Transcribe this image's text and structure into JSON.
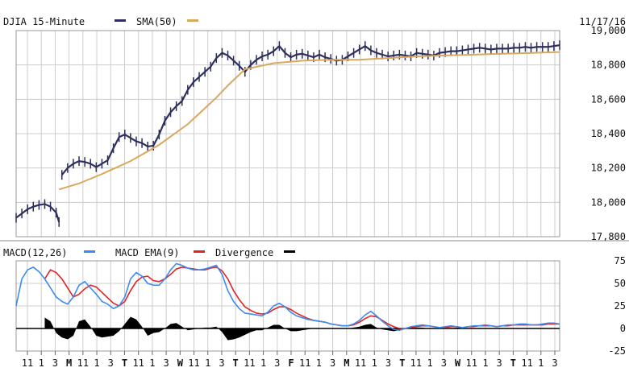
{
  "header": {
    "title": "DJIA 15-Minute",
    "price_legend": "SMA(50)",
    "date": "11/17/16"
  },
  "macd_header": {
    "macd_label": "MACD(12,26)",
    "ema_label": "MACD EMA(9)",
    "div_label": "Divergence"
  },
  "colors": {
    "price": "#2e2f5e",
    "sma": "#d9a85c",
    "macd": "#3b8cf0",
    "ema": "#e02424",
    "divergence": "#000000",
    "grid": "#cccccc"
  },
  "chart_data": [
    {
      "type": "line",
      "title": "DJIA 15-Minute",
      "series": [
        {
          "name": "DJIA 15-Minute",
          "x": [
            0,
            2,
            4,
            6,
            8,
            10,
            12,
            14,
            15,
            16,
            18,
            20,
            22,
            24,
            26,
            28,
            30,
            32,
            34,
            36,
            38,
            40,
            42,
            44,
            46,
            48,
            50,
            52,
            54,
            56,
            58,
            60,
            62,
            64,
            66,
            68,
            70,
            72,
            74,
            76,
            78,
            80,
            82,
            84,
            86,
            88,
            90,
            92,
            94,
            96,
            98,
            100,
            102,
            104,
            106,
            108,
            110,
            112,
            114,
            116,
            118,
            120,
            122,
            124,
            126,
            128,
            130,
            132,
            134,
            136,
            138,
            140,
            142,
            144,
            146,
            148,
            150,
            152,
            154,
            156,
            158,
            160,
            162,
            164,
            166,
            168,
            170,
            172,
            174,
            176,
            178,
            180,
            182,
            184,
            186,
            188,
            190
          ],
          "values": [
            17910,
            17935,
            17960,
            17975,
            17985,
            17990,
            17975,
            17940,
            17885,
            18160,
            18200,
            18225,
            18240,
            18235,
            18225,
            18205,
            18225,
            18245,
            18315,
            18380,
            18395,
            18375,
            18355,
            18345,
            18325,
            18330,
            18395,
            18475,
            18525,
            18560,
            18590,
            18655,
            18700,
            18730,
            18760,
            18790,
            18840,
            18870,
            18855,
            18825,
            18795,
            18760,
            18800,
            18830,
            18850,
            18860,
            18880,
            18910,
            18870,
            18845,
            18860,
            18865,
            18855,
            18845,
            18860,
            18845,
            18835,
            18825,
            18830,
            18850,
            18870,
            18890,
            18910,
            18885,
            18870,
            18860,
            18850,
            18855,
            18860,
            18855,
            18850,
            18870,
            18865,
            18860,
            18855,
            18870,
            18875,
            18880,
            18880,
            18885,
            18890,
            18895,
            18900,
            18895,
            18890,
            18895,
            18895,
            18895,
            18900,
            18900,
            18905,
            18900,
            18905,
            18905,
            18905,
            18910,
            18915
          ]
        },
        {
          "name": "SMA(50)",
          "x": [
            15,
            22,
            30,
            40,
            50,
            60,
            70,
            74,
            80,
            90,
            100,
            110,
            120,
            130,
            140,
            150,
            160,
            170,
            180,
            190
          ],
          "values": [
            18075,
            18110,
            18165,
            18240,
            18335,
            18455,
            18610,
            18680,
            18775,
            18810,
            18825,
            18830,
            18830,
            18840,
            18850,
            18855,
            18860,
            18865,
            18870,
            18875
          ]
        }
      ],
      "ylim": [
        17800,
        19000
      ],
      "yticks": [
        17800,
        18000,
        18200,
        18400,
        18600,
        18800,
        19000
      ],
      "grid": true
    },
    {
      "type": "line",
      "series": [
        {
          "name": "MACD(12,26)",
          "x": [
            0,
            2,
            4,
            6,
            8,
            10,
            12,
            14,
            16,
            18,
            20,
            22,
            24,
            26,
            28,
            30,
            32,
            34,
            36,
            38,
            40,
            42,
            44,
            46,
            48,
            50,
            52,
            54,
            56,
            58,
            60,
            62,
            64,
            66,
            68,
            70,
            72,
            74,
            76,
            78,
            80,
            82,
            84,
            86,
            88,
            90,
            92,
            94,
            96,
            98,
            100,
            102,
            104,
            106,
            108,
            110,
            112,
            114,
            116,
            118,
            120,
            122,
            124,
            126,
            128,
            130,
            132,
            134,
            136,
            138,
            140,
            142,
            144,
            146,
            148,
            150,
            152,
            154,
            156,
            158,
            160,
            162,
            164,
            166,
            168,
            170,
            172,
            174,
            176,
            178,
            180,
            182,
            184,
            186,
            188,
            190
          ],
          "values": [
            25,
            55,
            65,
            68,
            63,
            55,
            45,
            35,
            30,
            27,
            35,
            48,
            52,
            45,
            38,
            30,
            27,
            22,
            25,
            35,
            55,
            62,
            58,
            50,
            48,
            48,
            55,
            65,
            72,
            70,
            67,
            65,
            65,
            66,
            68,
            70,
            60,
            42,
            30,
            22,
            17,
            16,
            15,
            14,
            18,
            25,
            28,
            24,
            18,
            14,
            12,
            10,
            9,
            8,
            7,
            5,
            4,
            3,
            3,
            5,
            9,
            15,
            19,
            14,
            8,
            3,
            -1,
            -2,
            0,
            2,
            3,
            4,
            3,
            2,
            1,
            2,
            3,
            2,
            1,
            2,
            3,
            3,
            4,
            3,
            2,
            3,
            4,
            4,
            5,
            5,
            4,
            4,
            5,
            6,
            6,
            5
          ]
        },
        {
          "name": "MACD EMA(9)",
          "x": [
            10,
            12,
            14,
            16,
            18,
            20,
            22,
            24,
            26,
            28,
            30,
            32,
            34,
            36,
            38,
            40,
            42,
            44,
            46,
            48,
            50,
            52,
            54,
            56,
            58,
            60,
            62,
            64,
            66,
            68,
            70,
            72,
            74,
            76,
            78,
            80,
            82,
            84,
            86,
            88,
            90,
            92,
            94,
            96,
            98,
            100,
            102,
            104,
            106,
            108,
            110,
            112,
            114,
            116,
            118,
            120,
            122,
            124,
            126,
            128,
            130,
            132,
            134,
            136,
            138,
            140,
            142,
            144,
            146,
            148,
            150,
            152,
            154,
            156,
            158,
            160,
            162,
            164,
            166,
            168,
            170,
            172,
            174,
            176,
            178,
            180,
            182,
            184,
            186,
            188,
            190
          ],
          "values": [
            55,
            65,
            62,
            55,
            45,
            35,
            38,
            44,
            48,
            46,
            40,
            34,
            28,
            25,
            30,
            42,
            52,
            57,
            58,
            53,
            52,
            55,
            60,
            66,
            68,
            67,
            66,
            65,
            65,
            67,
            68,
            64,
            55,
            42,
            32,
            24,
            20,
            17,
            16,
            17,
            21,
            24,
            24,
            21,
            17,
            14,
            11,
            9,
            8,
            7,
            5,
            4,
            3,
            3,
            4,
            7,
            11,
            14,
            13,
            9,
            5,
            2,
            0,
            0,
            1,
            2,
            3,
            3,
            2,
            1,
            1,
            2,
            2,
            1,
            2,
            2,
            3,
            3,
            3,
            2,
            3,
            3,
            4,
            4,
            4,
            4,
            4,
            4,
            5,
            5,
            5
          ]
        },
        {
          "name": "Divergence",
          "x": [
            10,
            12,
            14,
            16,
            18,
            20,
            22,
            24,
            26,
            28,
            30,
            32,
            34,
            36,
            38,
            40,
            42,
            44,
            46,
            48,
            50,
            52,
            54,
            56,
            58,
            60,
            62,
            64,
            66,
            68,
            70,
            72,
            74,
            76,
            78,
            80,
            82,
            84,
            86,
            88,
            90,
            92,
            94,
            96,
            98,
            100,
            102,
            104,
            106,
            108,
            110,
            112,
            114,
            116,
            118,
            120,
            122,
            124,
            126,
            128,
            130,
            132,
            134,
            136,
            138,
            140,
            142,
            144,
            146,
            148,
            150,
            152,
            154,
            156,
            158,
            160,
            162,
            164,
            166,
            168,
            170,
            172,
            174,
            176,
            178,
            180,
            182,
            184,
            186,
            188,
            190
          ],
          "values": [
            12,
            8,
            -5,
            -10,
            -12,
            -8,
            8,
            10,
            2,
            -8,
            -10,
            -9,
            -8,
            -3,
            5,
            13,
            10,
            2,
            -8,
            -5,
            -4,
            0,
            5,
            6,
            2,
            -2,
            -1,
            0,
            1,
            1,
            2,
            -4,
            -13,
            -12,
            -10,
            -7,
            -4,
            -2,
            -2,
            1,
            4,
            4,
            0,
            -3,
            -3,
            -2,
            -1,
            0,
            0,
            0,
            0,
            0,
            0,
            0,
            1,
            2,
            4,
            5,
            1,
            -1,
            -2,
            -3,
            -2,
            0,
            1,
            1,
            1,
            0,
            0,
            0,
            0,
            0,
            1,
            1,
            0,
            0,
            0,
            0,
            0,
            0,
            0,
            0,
            0,
            0,
            0,
            0,
            0,
            0,
            0,
            0,
            0
          ]
        }
      ],
      "ylim": [
        -25,
        75
      ],
      "yticks": [
        -25,
        0,
        25,
        50,
        75
      ],
      "grid": true
    }
  ],
  "x_axis": {
    "tick_labels": [
      "11",
      "1",
      "3",
      "M",
      "11",
      "1",
      "3",
      "T",
      "11",
      "1",
      "3",
      "W",
      "11",
      "1",
      "3",
      "T",
      "11",
      "1",
      "3",
      "F",
      "11",
      "1",
      "3",
      "M",
      "11",
      "1",
      "3",
      "T",
      "11",
      "1",
      "3",
      "W",
      "11",
      "1",
      "3",
      "T",
      "11",
      "1",
      "3"
    ]
  }
}
